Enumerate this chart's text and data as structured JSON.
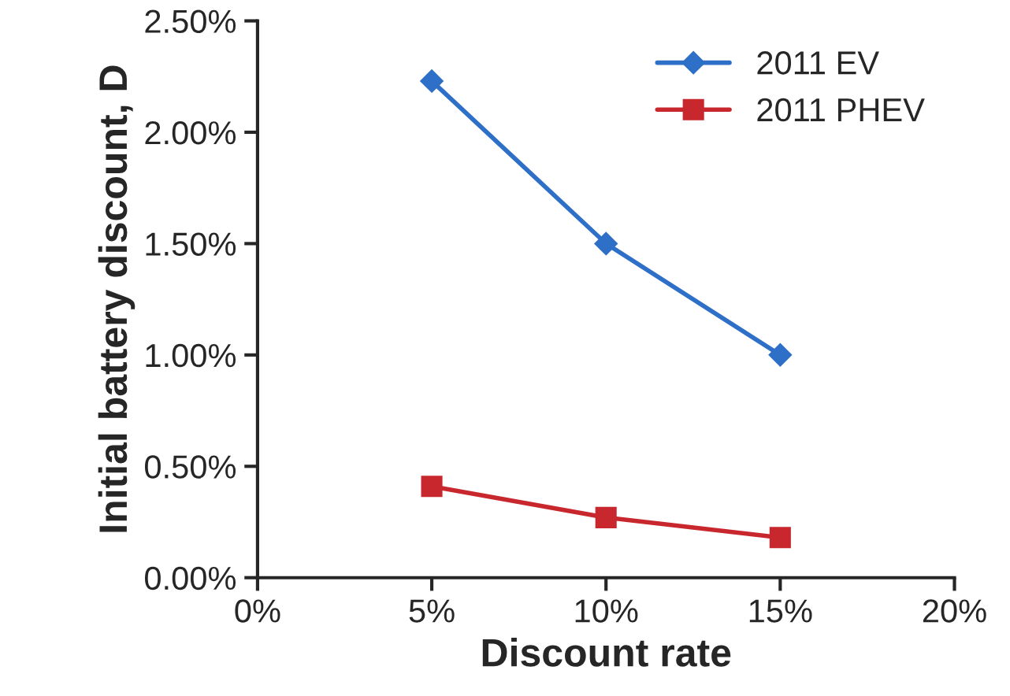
{
  "chart_data": {
    "type": "line",
    "xlabel": "Discount rate",
    "ylabel": "Initial battery discount, D",
    "x": [
      5,
      10,
      15
    ],
    "series": [
      {
        "name": "2011 EV",
        "color": "#2e6fc7",
        "marker": "diamond",
        "values": [
          2.23,
          1.5,
          1.0
        ]
      },
      {
        "name": "2011 PHEV",
        "color": "#c8282d",
        "marker": "square",
        "values": [
          0.41,
          0.27,
          0.18
        ]
      }
    ],
    "xlim": [
      0,
      20
    ],
    "xticks": [
      {
        "value": 0,
        "label": "0%"
      },
      {
        "value": 5,
        "label": "5%"
      },
      {
        "value": 10,
        "label": "10%"
      },
      {
        "value": 15,
        "label": "15%"
      },
      {
        "value": 20,
        "label": "20%"
      }
    ],
    "ylim": [
      0,
      2.5
    ],
    "yticks": [
      {
        "value": 0,
        "label": "0.00%"
      },
      {
        "value": 0.5,
        "label": "0.50%"
      },
      {
        "value": 1.0,
        "label": "1.00%"
      },
      {
        "value": 1.5,
        "label": "1.50%"
      },
      {
        "value": 2.0,
        "label": "2.00%"
      },
      {
        "value": 2.5,
        "label": "2.50%"
      }
    ],
    "grid": false,
    "legend": "top right",
    "line_style": "solid"
  }
}
